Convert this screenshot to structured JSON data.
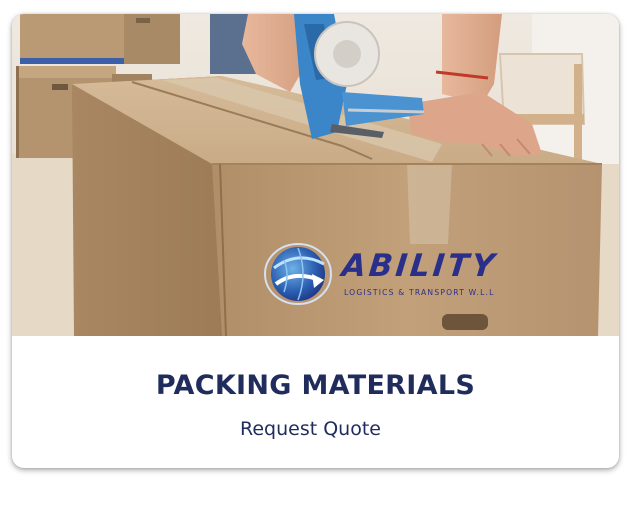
{
  "card": {
    "title": "PACKING MATERIALS",
    "link_label": "Request Quote"
  },
  "logo": {
    "name": "ABILITY",
    "tagline": "LOGISTICS & TRANSPORT W.L.L"
  },
  "image": {
    "subject": "packing-cardboard-box-with-tape-dispenser"
  },
  "colors": {
    "title": "#1f2c5c",
    "logo_blue": "#2a2f8a",
    "tape_gun": "#3a86c8",
    "cardboard": "#c5a57f"
  }
}
